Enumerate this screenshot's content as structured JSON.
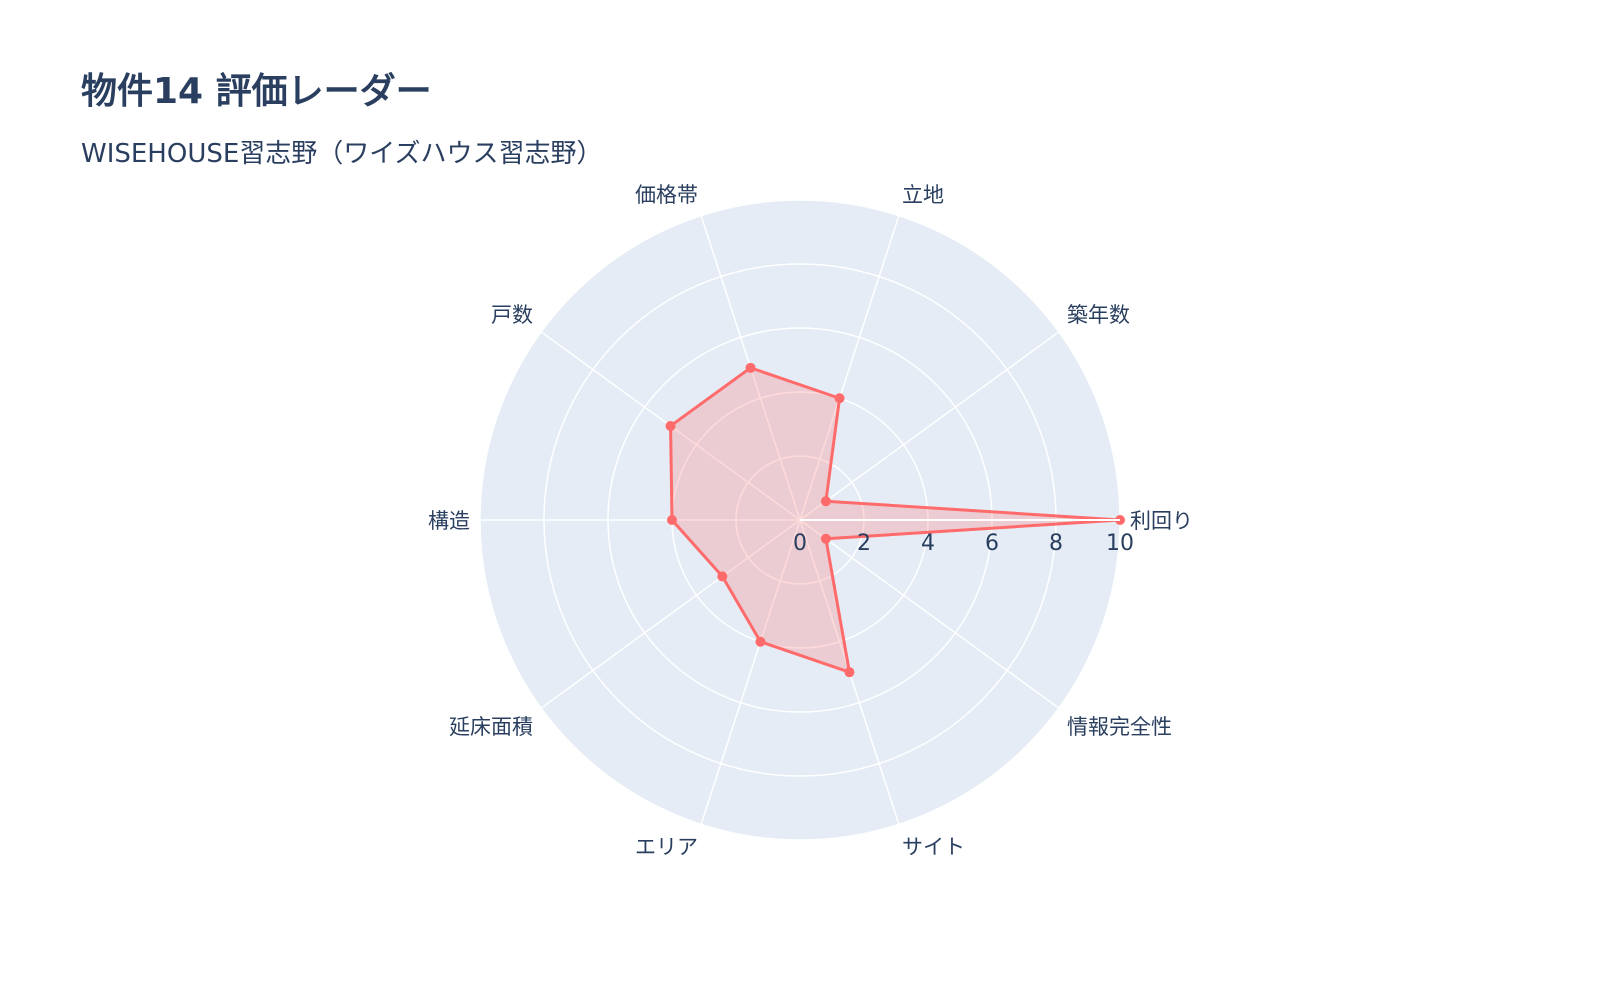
{
  "chart_data": {
    "type": "radar",
    "title": "物件14 評価レーダー",
    "subtitle": "WISEHOUSE習志野（ワイズハウス習志野）",
    "categories": [
      "利回り",
      "築年数",
      "立地",
      "価格帯",
      "戸数",
      "構造",
      "延床面積",
      "エリア",
      "サイト",
      "情報完全性"
    ],
    "values": [
      10,
      1,
      4,
      5,
      5,
      4,
      3,
      4,
      5,
      1
    ],
    "radial_range": [
      0,
      10
    ],
    "radial_ticks": [
      "0",
      "2",
      "4",
      "6",
      "8",
      "10"
    ],
    "grid": true,
    "colors": {
      "line": "#ff6b6b",
      "fill": "rgba(255,107,107,0.25)",
      "polar_bg": "#e5ecf6",
      "grid": "#ffffff",
      "text": "#2a3f5f"
    }
  }
}
